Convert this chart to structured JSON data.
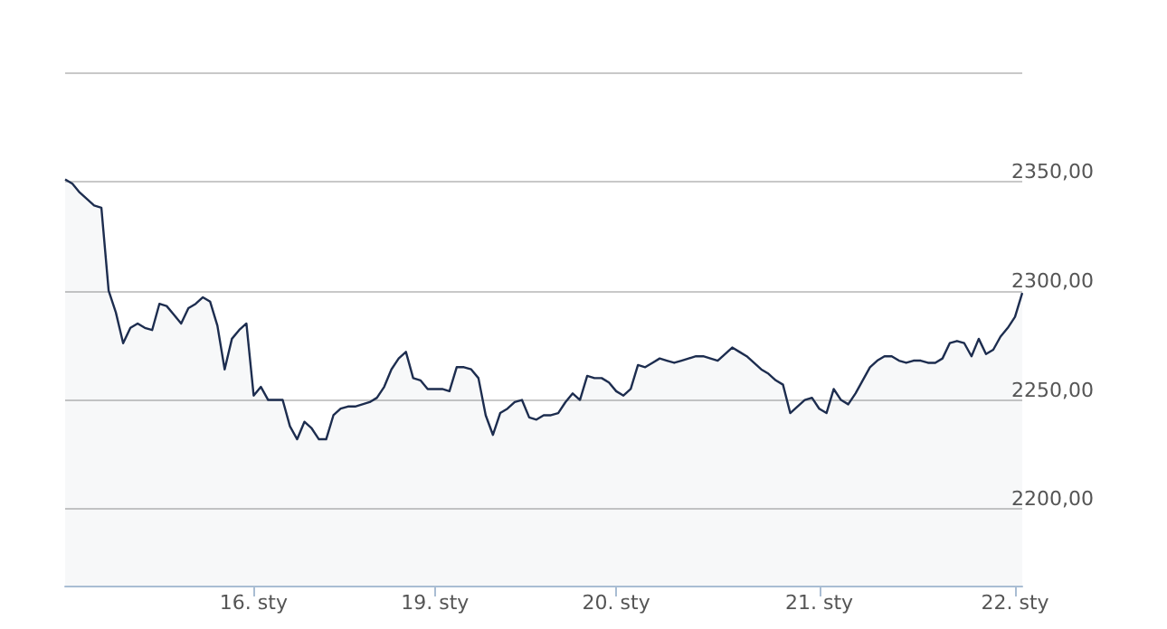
{
  "chart_data": {
    "type": "area",
    "categories": [
      null,
      null,
      null,
      null,
      null,
      null,
      null,
      null,
      null,
      null,
      null,
      null,
      null,
      null,
      null,
      null,
      null,
      null,
      null,
      null,
      null,
      null,
      null,
      null,
      null,
      null,
      "16. sty",
      null,
      null,
      null,
      null,
      null,
      null,
      null,
      null,
      null,
      null,
      null,
      null,
      null,
      null,
      null,
      null,
      null,
      null,
      null,
      null,
      null,
      null,
      null,
      null,
      "19. sty",
      null,
      null,
      null,
      null,
      null,
      null,
      null,
      null,
      null,
      null,
      null,
      null,
      null,
      null,
      null,
      null,
      null,
      null,
      null,
      null,
      null,
      null,
      null,
      null,
      "20. sty",
      null,
      null,
      null,
      null,
      null,
      null,
      null,
      null,
      null,
      null,
      null,
      null,
      null,
      null,
      null,
      null,
      null,
      null,
      null,
      null,
      null,
      null,
      null,
      null,
      null,
      null,
      null,
      "21. sty",
      null,
      null,
      null,
      null,
      null,
      null,
      null,
      null,
      null,
      null,
      null,
      null,
      null,
      null,
      null,
      null,
      null,
      null,
      null,
      null,
      null,
      null,
      null,
      null,
      null,
      null,
      "22. sty",
      null
    ],
    "values": [
      2351,
      2349,
      2345,
      2342,
      2339,
      2338,
      2300,
      2290,
      2276,
      2283,
      2285,
      2283,
      2282,
      2294,
      2293,
      2289,
      2285,
      2292,
      2294,
      2297,
      2295,
      2284,
      2264,
      2278,
      2282,
      2285,
      2252,
      2256,
      2250,
      2250,
      2250,
      2238,
      2232,
      2240,
      2237,
      2232,
      2232,
      2243,
      2246,
      2247,
      2247,
      2248,
      2249,
      2251,
      2256,
      2264,
      2269,
      2272,
      2260,
      2259,
      2255,
      2255,
      2255,
      2254,
      2265,
      2265,
      2264,
      2260,
      2243,
      2234,
      2244,
      2246,
      2249,
      2250,
      2242,
      2241,
      2243,
      2243,
      2244,
      2249,
      2253,
      2250,
      2261,
      2260,
      2260,
      2258,
      2254,
      2252,
      2255,
      2266,
      2265,
      2267,
      2269,
      2268,
      2267,
      2268,
      2269,
      2270,
      2270,
      2269,
      2268,
      2271,
      2274,
      2272,
      2270,
      2267,
      2264,
      2262,
      2259,
      2257,
      2244,
      2247,
      2250,
      2251,
      2246,
      2244,
      2255,
      2250,
      2248,
      2253,
      2259,
      2265,
      2268,
      2270,
      2270,
      2268,
      2267,
      2268,
      2268,
      2267,
      2267,
      2269,
      2276,
      2277,
      2276,
      2270,
      2278,
      2271,
      2273,
      2279,
      2283,
      2288,
      2299
    ],
    "color": "#1d2d4f",
    "ylim": [
      2165,
      2400
    ],
    "yticks": [
      {
        "value": 2200,
        "label": "2200,00"
      },
      {
        "value": 2250,
        "label": "2250,00"
      },
      {
        "value": 2300,
        "label": "2300,00"
      },
      {
        "value": 2350,
        "label": "2350,00"
      },
      {
        "value": 2400,
        "label": null
      }
    ],
    "grid": "y",
    "marker": "none"
  }
}
